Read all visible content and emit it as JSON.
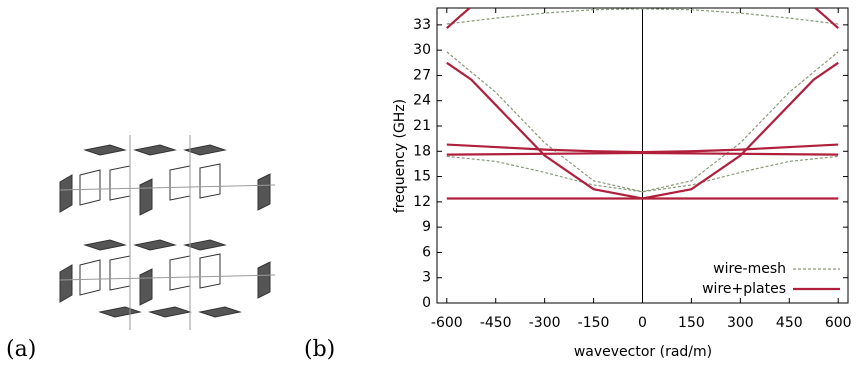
{
  "panel_labels": [
    "(a)",
    "(b)"
  ],
  "chart_data": {
    "type": "line",
    "xlabel": "wavevector (rad/m)",
    "ylabel": "frequency (GHz)",
    "xlim": [
      -630,
      630
    ],
    "ylim": [
      0,
      35
    ],
    "xticks": [
      -600,
      -450,
      -300,
      -150,
      0,
      150,
      300,
      450,
      600
    ],
    "yticks": [
      0,
      3,
      6,
      9,
      12,
      15,
      18,
      21,
      24,
      27,
      30,
      33
    ],
    "zero_line": true,
    "legend": "lower right",
    "series": [
      {
        "name": "wire-mesh",
        "color": "#8a9a7a",
        "dash": true,
        "bands": [
          {
            "x": [
              -600,
              -450,
              -300,
              -150,
              0,
              150,
              300,
              450,
              600
            ],
            "values": [
              29.8,
              25,
              19,
              14.5,
              13.2,
              14.5,
              19,
              25,
              29.8
            ]
          },
          {
            "x": [
              -600,
              -450,
              -300,
              -150,
              0,
              150,
              300,
              450,
              600
            ],
            "values": [
              17.4,
              16.8,
              15.5,
              14,
              13.2,
              14,
              15.5,
              16.8,
              17.4
            ]
          },
          {
            "x": [
              -600,
              -450,
              -300,
              -150,
              0,
              150,
              300,
              450,
              600
            ],
            "values": [
              33.1,
              33.8,
              34.4,
              34.8,
              34.9,
              34.8,
              34.4,
              33.8,
              33.1
            ]
          }
        ]
      },
      {
        "name": "wire+plates",
        "color": "#b0203c",
        "dash": false,
        "bands": [
          {
            "x": [
              -600,
              600
            ],
            "values": [
              12.4,
              12.4
            ]
          },
          {
            "x": [
              -600,
              -300,
              0,
              300,
              600
            ],
            "values": [
              17.6,
              17.7,
              17.8,
              17.7,
              17.6
            ]
          },
          {
            "x": [
              -600,
              -450,
              -300,
              -150,
              0,
              150,
              300,
              450,
              600
            ],
            "values": [
              18.8,
              18.5,
              18.2,
              18,
              17.9,
              18,
              18.2,
              18.5,
              18.8
            ]
          },
          {
            "x": [
              -600,
              -525,
              -450,
              -300,
              -150,
              0,
              150,
              300,
              450,
              525,
              600
            ],
            "values": [
              28.5,
              26.5,
              23.5,
              17.5,
              13.5,
              12.4,
              13.5,
              17.5,
              23.5,
              26.5,
              28.5
            ]
          },
          {
            "x": [
              -600,
              -560,
              -530
            ],
            "values": [
              32.6,
              34,
              35
            ]
          },
          {
            "x": [
              530,
              560,
              600
            ],
            "values": [
              35,
              34,
              32.6
            ]
          }
        ]
      }
    ]
  }
}
